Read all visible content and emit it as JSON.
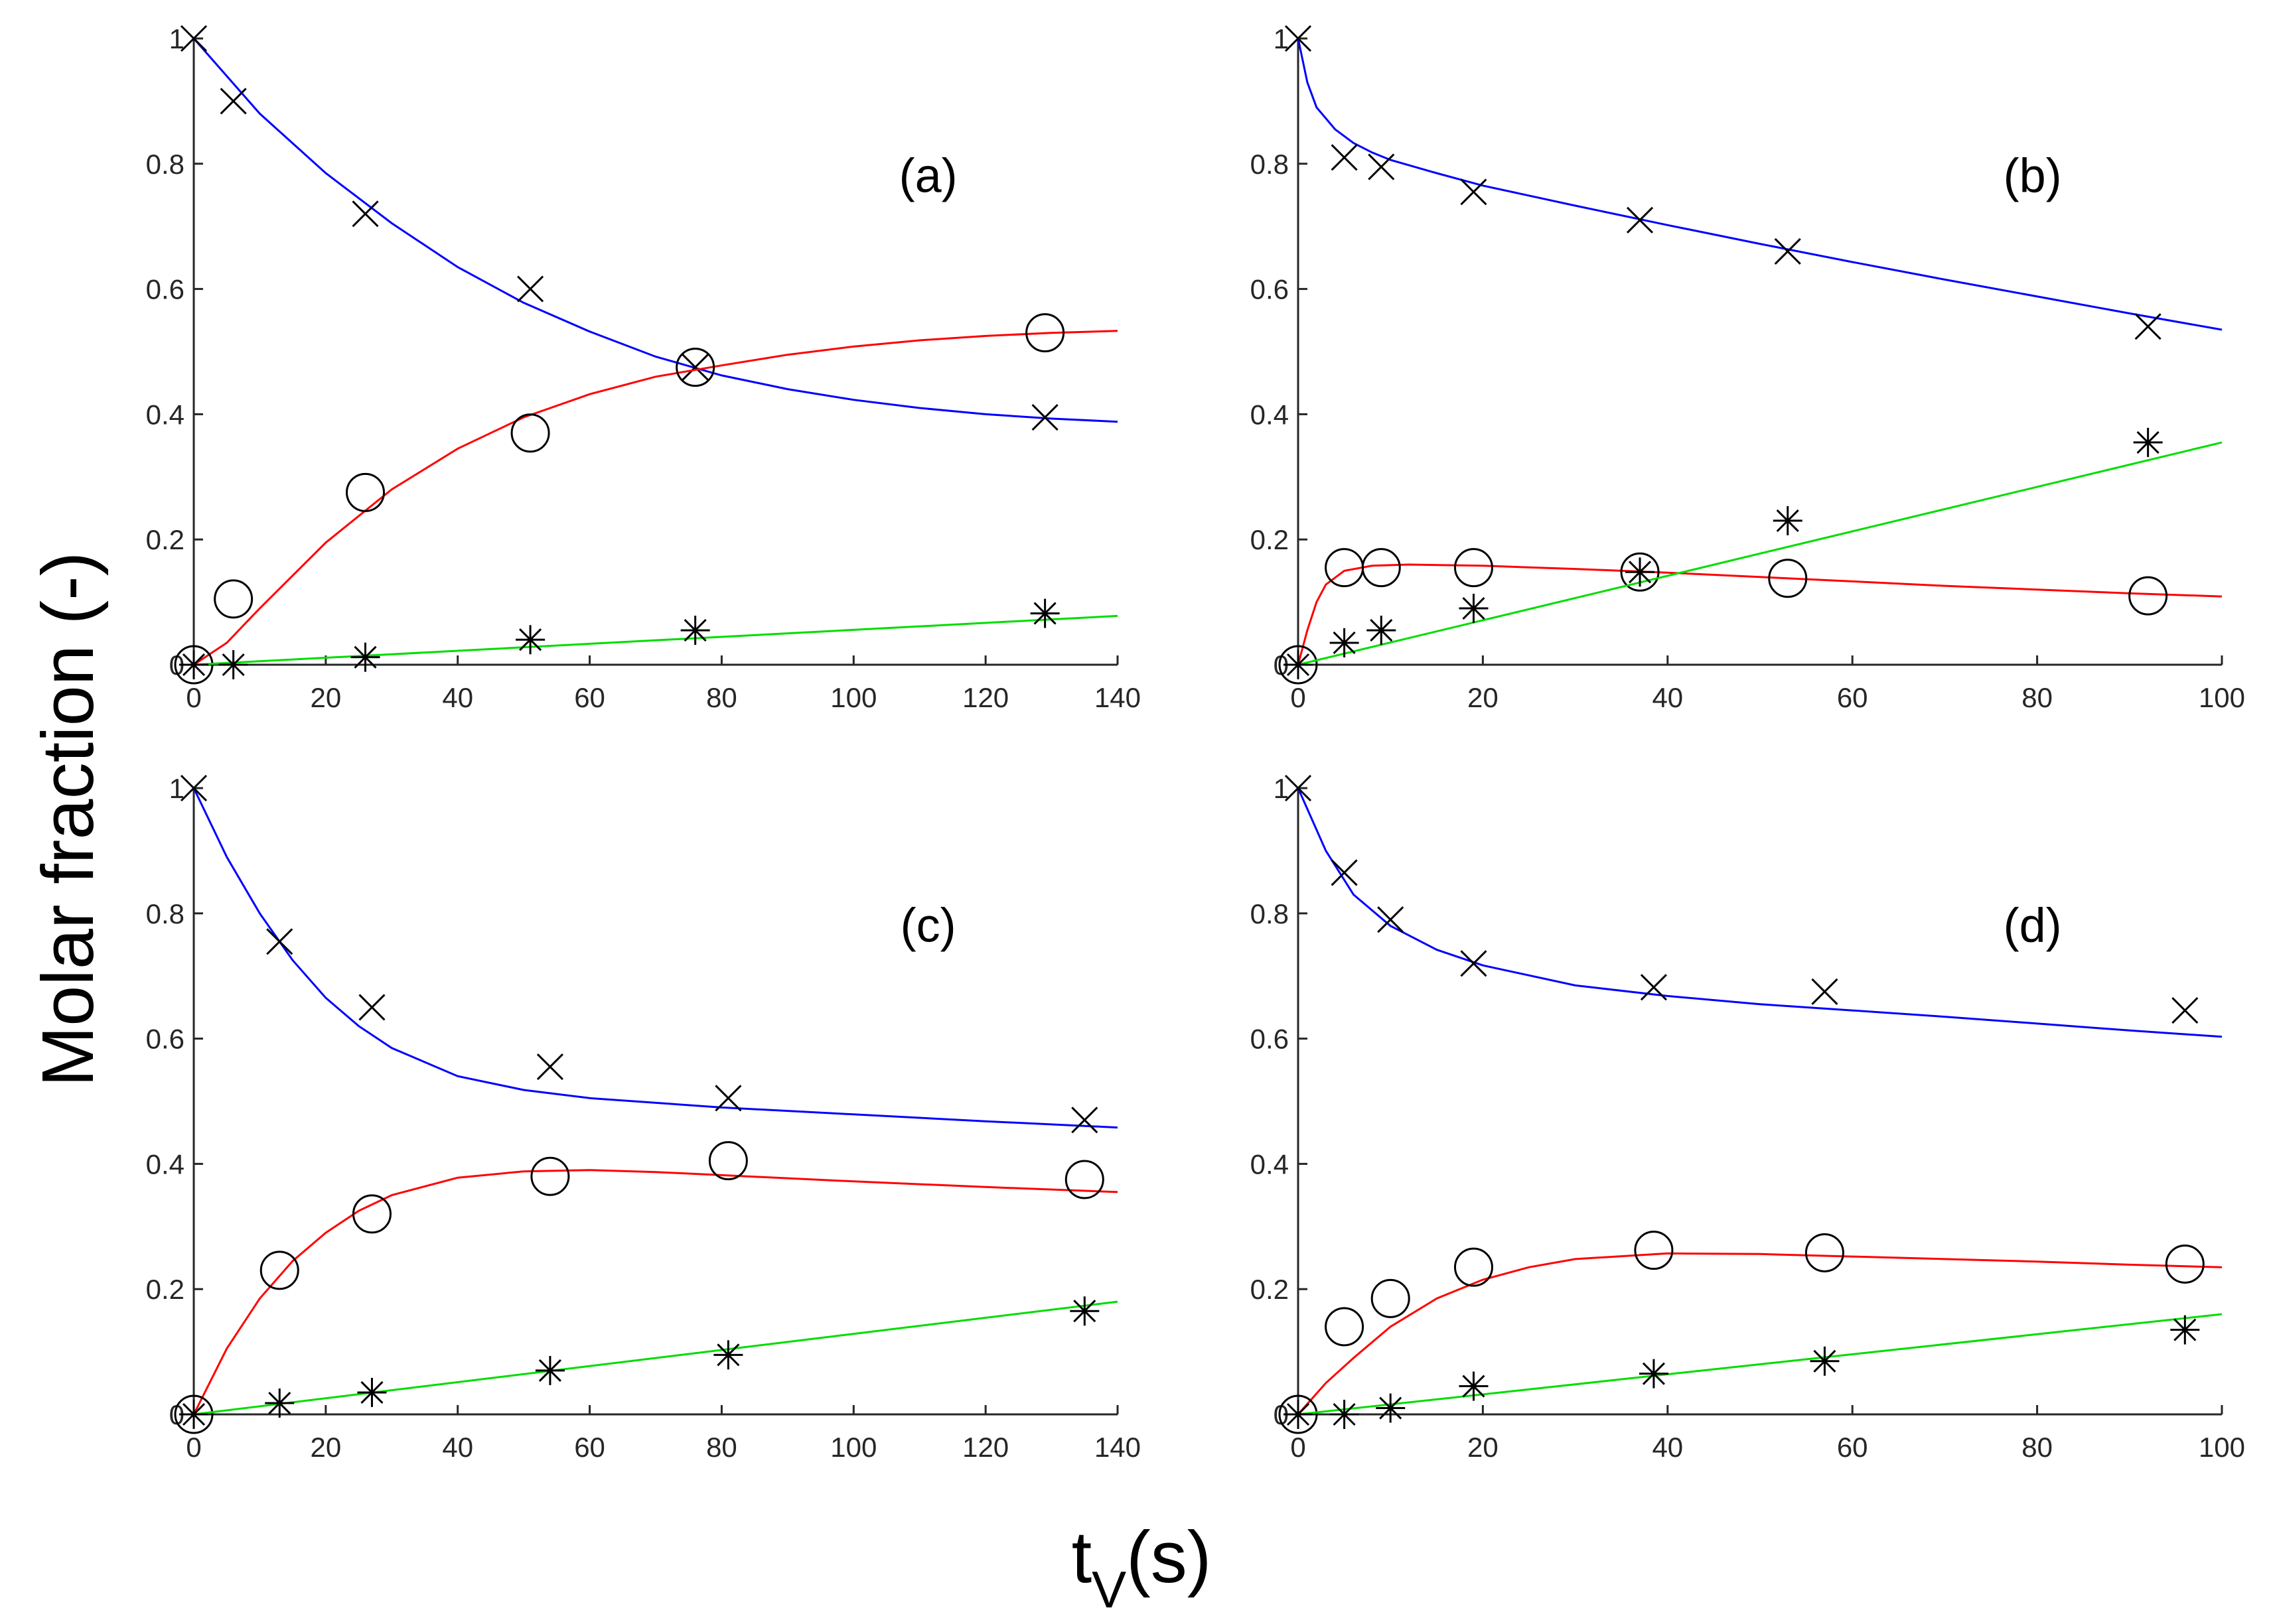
{
  "figure": {
    "ylabel": "Molar fraction (-)",
    "xlabel_main": "t",
    "xlabel_sub": "V",
    "xlabel_rest": "(s)"
  },
  "colors": {
    "blue": "#0000ff",
    "red": "#ff0000",
    "green": "#00dd00",
    "markers": "#000000",
    "axes": "#262626"
  },
  "chart_data": [
    {
      "type": "line",
      "panel": "(a)",
      "xlim": [
        0,
        140
      ],
      "ylim": [
        0,
        1
      ],
      "xticks": [
        "0",
        "20",
        "40",
        "60",
        "80",
        "100",
        "120",
        "140"
      ],
      "yticks": [
        "0",
        "0.2",
        "0.4",
        "0.6",
        "0.8",
        "1"
      ],
      "series": [
        {
          "name": "blue-model",
          "color": "blue",
          "marker": "x",
          "curve": [
            [
              0,
              1
            ],
            [
              10,
              0.88
            ],
            [
              20,
              0.785
            ],
            [
              30,
              0.705
            ],
            [
              40,
              0.635
            ],
            [
              50,
              0.578
            ],
            [
              60,
              0.532
            ],
            [
              70,
              0.492
            ],
            [
              80,
              0.462
            ],
            [
              90,
              0.44
            ],
            [
              100,
              0.423
            ],
            [
              110,
              0.41
            ],
            [
              120,
              0.4
            ],
            [
              130,
              0.393
            ],
            [
              140,
              0.388
            ]
          ],
          "points": [
            [
              0,
              1
            ],
            [
              6,
              0.9
            ],
            [
              26,
              0.72
            ],
            [
              51,
              0.6
            ],
            [
              76,
              0.475
            ],
            [
              129,
              0.395
            ]
          ]
        },
        {
          "name": "red-model",
          "color": "red",
          "marker": "circle",
          "curve": [
            [
              0,
              0
            ],
            [
              5,
              0.035
            ],
            [
              10,
              0.09
            ],
            [
              20,
              0.195
            ],
            [
              30,
              0.28
            ],
            [
              40,
              0.345
            ],
            [
              50,
              0.395
            ],
            [
              60,
              0.432
            ],
            [
              70,
              0.46
            ],
            [
              80,
              0.478
            ],
            [
              90,
              0.495
            ],
            [
              100,
              0.508
            ],
            [
              110,
              0.518
            ],
            [
              120,
              0.525
            ],
            [
              130,
              0.53
            ],
            [
              140,
              0.533
            ]
          ],
          "points": [
            [
              0,
              0
            ],
            [
              6,
              0.105
            ],
            [
              26,
              0.275
            ],
            [
              51,
              0.37
            ],
            [
              76,
              0.475
            ],
            [
              129,
              0.53
            ]
          ]
        },
        {
          "name": "green-model",
          "color": "green",
          "marker": "asterisk",
          "curve": [
            [
              0,
              0
            ],
            [
              140,
              0.078
            ]
          ],
          "points": [
            [
              0,
              0
            ],
            [
              6,
              0
            ],
            [
              26,
              0.012
            ],
            [
              51,
              0.04
            ],
            [
              76,
              0.055
            ],
            [
              129,
              0.082
            ]
          ]
        }
      ]
    },
    {
      "type": "line",
      "panel": "(b)",
      "xlim": [
        0,
        100
      ],
      "ylim": [
        0,
        1
      ],
      "xticks": [
        "0",
        "20",
        "40",
        "60",
        "80",
        "100"
      ],
      "yticks": [
        "0",
        "0.2",
        "0.4",
        "0.6",
        "0.8",
        "1"
      ],
      "series": [
        {
          "name": "blue-model",
          "color": "blue",
          "marker": "x",
          "curve": [
            [
              0,
              1
            ],
            [
              1,
              0.93
            ],
            [
              2,
              0.89
            ],
            [
              4,
              0.855
            ],
            [
              6,
              0.833
            ],
            [
              8,
              0.818
            ],
            [
              10,
              0.806
            ],
            [
              15,
              0.785
            ],
            [
              20,
              0.765
            ],
            [
              30,
              0.733
            ],
            [
              40,
              0.702
            ],
            [
              50,
              0.672
            ],
            [
              60,
              0.643
            ],
            [
              70,
              0.615
            ],
            [
              80,
              0.588
            ],
            [
              90,
              0.561
            ],
            [
              100,
              0.535
            ]
          ],
          "points": [
            [
              0,
              1
            ],
            [
              5,
              0.81
            ],
            [
              9,
              0.795
            ],
            [
              19,
              0.755
            ],
            [
              37,
              0.71
            ],
            [
              53,
              0.66
            ],
            [
              92,
              0.54
            ]
          ]
        },
        {
          "name": "red-model",
          "color": "red",
          "marker": "circle",
          "curve": [
            [
              0,
              0
            ],
            [
              1,
              0.055
            ],
            [
              2,
              0.1
            ],
            [
              3,
              0.128
            ],
            [
              5,
              0.15
            ],
            [
              8,
              0.158
            ],
            [
              12,
              0.16
            ],
            [
              20,
              0.158
            ],
            [
              30,
              0.153
            ],
            [
              40,
              0.147
            ],
            [
              50,
              0.14
            ],
            [
              60,
              0.133
            ],
            [
              70,
              0.126
            ],
            [
              80,
              0.12
            ],
            [
              90,
              0.114
            ],
            [
              100,
              0.109
            ]
          ],
          "points": [
            [
              0,
              0
            ],
            [
              5,
              0.155
            ],
            [
              9,
              0.155
            ],
            [
              19,
              0.155
            ],
            [
              37,
              0.148
            ],
            [
              53,
              0.138
            ],
            [
              92,
              0.11
            ]
          ]
        },
        {
          "name": "green-model",
          "color": "green",
          "marker": "asterisk",
          "curve": [
            [
              0,
              0
            ],
            [
              100,
              0.355
            ]
          ],
          "points": [
            [
              0,
              0
            ],
            [
              5,
              0.035
            ],
            [
              9,
              0.055
            ],
            [
              19,
              0.09
            ],
            [
              37,
              0.148
            ],
            [
              53,
              0.23
            ],
            [
              92,
              0.355
            ]
          ]
        }
      ]
    },
    {
      "type": "line",
      "panel": "(c)",
      "xlim": [
        0,
        140
      ],
      "ylim": [
        0,
        1
      ],
      "xticks": [
        "0",
        "20",
        "40",
        "60",
        "80",
        "100",
        "120",
        "140"
      ],
      "yticks": [
        "0",
        "0.2",
        "0.4",
        "0.6",
        "0.8",
        "1"
      ],
      "series": [
        {
          "name": "blue-model",
          "color": "blue",
          "marker": "x",
          "curve": [
            [
              0,
              1
            ],
            [
              5,
              0.89
            ],
            [
              10,
              0.8
            ],
            [
              15,
              0.725
            ],
            [
              20,
              0.665
            ],
            [
              25,
              0.62
            ],
            [
              30,
              0.585
            ],
            [
              40,
              0.54
            ],
            [
              50,
              0.518
            ],
            [
              60,
              0.505
            ],
            [
              80,
              0.49
            ],
            [
              100,
              0.479
            ],
            [
              120,
              0.468
            ],
            [
              140,
              0.458
            ]
          ],
          "points": [
            [
              0,
              1
            ],
            [
              13,
              0.755
            ],
            [
              27,
              0.65
            ],
            [
              54,
              0.555
            ],
            [
              81,
              0.505
            ],
            [
              135,
              0.47
            ]
          ]
        },
        {
          "name": "red-model",
          "color": "red",
          "marker": "circle",
          "curve": [
            [
              0,
              0
            ],
            [
              5,
              0.105
            ],
            [
              10,
              0.185
            ],
            [
              15,
              0.245
            ],
            [
              20,
              0.29
            ],
            [
              25,
              0.325
            ],
            [
              30,
              0.35
            ],
            [
              40,
              0.378
            ],
            [
              50,
              0.388
            ],
            [
              60,
              0.39
            ],
            [
              70,
              0.387
            ],
            [
              80,
              0.382
            ],
            [
              100,
              0.372
            ],
            [
              120,
              0.363
            ],
            [
              140,
              0.355
            ]
          ],
          "points": [
            [
              0,
              0
            ],
            [
              13,
              0.23
            ],
            [
              27,
              0.32
            ],
            [
              54,
              0.38
            ],
            [
              81,
              0.405
            ],
            [
              135,
              0.375
            ]
          ]
        },
        {
          "name": "green-model",
          "color": "green",
          "marker": "asterisk",
          "curve": [
            [
              0,
              0
            ],
            [
              140,
              0.18
            ]
          ],
          "points": [
            [
              0,
              0
            ],
            [
              13,
              0.018
            ],
            [
              27,
              0.035
            ],
            [
              54,
              0.07
            ],
            [
              81,
              0.095
            ],
            [
              135,
              0.165
            ]
          ]
        }
      ]
    },
    {
      "type": "line",
      "panel": "(d)",
      "xlim": [
        0,
        100
      ],
      "ylim": [
        0,
        1
      ],
      "xticks": [
        "0",
        "20",
        "40",
        "60",
        "80",
        "100"
      ],
      "yticks": [
        "0",
        "0.2",
        "0.4",
        "0.6",
        "0.8",
        "1"
      ],
      "series": [
        {
          "name": "blue-model",
          "color": "blue",
          "marker": "x",
          "curve": [
            [
              0,
              1
            ],
            [
              3,
              0.9
            ],
            [
              6,
              0.83
            ],
            [
              10,
              0.78
            ],
            [
              15,
              0.742
            ],
            [
              20,
              0.717
            ],
            [
              30,
              0.685
            ],
            [
              40,
              0.668
            ],
            [
              50,
              0.655
            ],
            [
              60,
              0.645
            ],
            [
              70,
              0.635
            ],
            [
              80,
              0.624
            ],
            [
              90,
              0.613
            ],
            [
              100,
              0.603
            ]
          ],
          "points": [
            [
              0,
              1
            ],
            [
              5,
              0.865
            ],
            [
              10,
              0.79
            ],
            [
              19,
              0.72
            ],
            [
              38.5,
              0.682
            ],
            [
              57,
              0.675
            ],
            [
              96,
              0.645
            ]
          ]
        },
        {
          "name": "red-model",
          "color": "red",
          "marker": "circle",
          "curve": [
            [
              0,
              0
            ],
            [
              3,
              0.05
            ],
            [
              6,
              0.09
            ],
            [
              10,
              0.14
            ],
            [
              15,
              0.185
            ],
            [
              20,
              0.215
            ],
            [
              25,
              0.235
            ],
            [
              30,
              0.248
            ],
            [
              40,
              0.257
            ],
            [
              50,
              0.256
            ],
            [
              60,
              0.252
            ],
            [
              70,
              0.248
            ],
            [
              80,
              0.244
            ],
            [
              90,
              0.239
            ],
            [
              100,
              0.235
            ]
          ],
          "points": [
            [
              0,
              0
            ],
            [
              5,
              0.14
            ],
            [
              10,
              0.185
            ],
            [
              19,
              0.235
            ],
            [
              38.5,
              0.262
            ],
            [
              57,
              0.258
            ],
            [
              96,
              0.24
            ]
          ]
        },
        {
          "name": "green-model",
          "color": "green",
          "marker": "asterisk",
          "curve": [
            [
              0,
              0
            ],
            [
              100,
              0.16
            ]
          ],
          "points": [
            [
              0,
              0
            ],
            [
              5,
              0
            ],
            [
              10,
              0.01
            ],
            [
              19,
              0.045
            ],
            [
              38.5,
              0.065
            ],
            [
              57,
              0.085
            ],
            [
              96,
              0.135
            ]
          ]
        }
      ]
    }
  ]
}
